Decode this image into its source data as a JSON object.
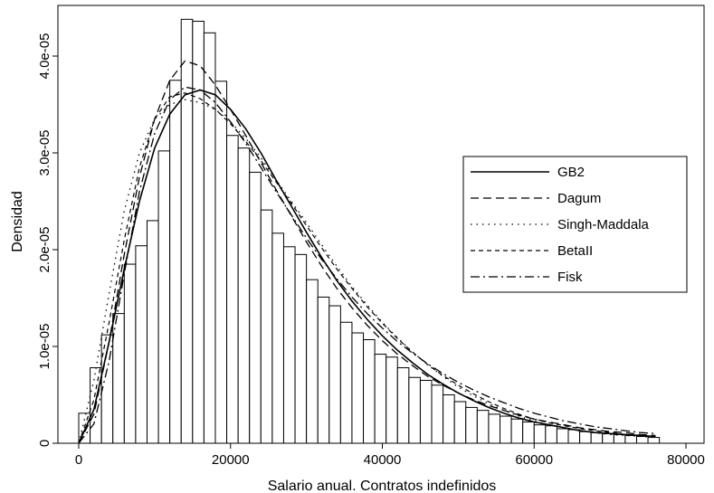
{
  "chart_data": {
    "type": "bar",
    "xlabel": "Salario anual. Contratos indefinidos",
    "ylabel": "Densidad",
    "xlim": [
      0,
      80000
    ],
    "ylim": [
      0,
      4.5e-05
    ],
    "x_ticks": [
      0,
      20000,
      40000,
      60000,
      80000
    ],
    "x_tick_labels": [
      "0",
      "20000",
      "40000",
      "60000",
      "80000"
    ],
    "y_ticks": [
      0,
      1e-05,
      2e-05,
      3e-05,
      4e-05
    ],
    "y_tick_labels": [
      "0",
      "1.0e-05",
      "2.0e-05",
      "3.0e-05",
      "4.0e-05"
    ],
    "histogram": {
      "bin_width": 1500,
      "bin_starts": [
        0,
        1500,
        3000,
        4500,
        6000,
        7500,
        9000,
        10500,
        12000,
        13500,
        15000,
        16500,
        18000,
        19500,
        21000,
        22500,
        24000,
        25500,
        27000,
        28500,
        30000,
        31500,
        33000,
        34500,
        36000,
        37500,
        39000,
        40500,
        42000,
        43500,
        45000,
        46500,
        48000,
        49500,
        51000,
        52500,
        54000,
        55500,
        57000,
        58500,
        60000,
        61500,
        63000,
        64500,
        66000,
        67500,
        69000,
        70500,
        72000,
        73500,
        75000
      ],
      "density": [
        3.1e-06,
        7.8e-06,
        1.12e-05,
        1.34e-05,
        1.85e-05,
        2.04e-05,
        2.3e-05,
        3.02e-05,
        3.75e-05,
        4.38e-05,
        4.36e-05,
        4.24e-05,
        3.74e-05,
        3.18e-05,
        3.05e-05,
        2.8e-05,
        2.41e-05,
        2.17e-05,
        2.03e-05,
        1.95e-05,
        1.69e-05,
        1.51e-05,
        1.42e-05,
        1.25e-05,
        1.14e-05,
        1.07e-05,
        9.2e-06,
        8.9e-06,
        7.8e-06,
        6.8e-06,
        6.5e-06,
        6e-06,
        5e-06,
        4.3e-06,
        3.7e-06,
        3.4e-06,
        3e-06,
        2.8e-06,
        2.5e-06,
        2.2e-06,
        1.9e-06,
        1.8e-06,
        1.5e-06,
        1.4e-06,
        1.2e-06,
        1.1e-06,
        1e-06,
        9e-07,
        8e-07,
        7e-07,
        6e-07
      ]
    },
    "series": [
      {
        "name": "GB2",
        "dash": "solid",
        "width": 1.6,
        "x": [
          0,
          2000,
          4000,
          6000,
          8000,
          10000,
          12000,
          14000,
          16000,
          18000,
          20000,
          22000,
          24000,
          26000,
          28000,
          30000,
          32000,
          34000,
          36000,
          38000,
          40000,
          42000,
          44000,
          46000,
          48000,
          50000,
          52000,
          54000,
          56000,
          58000,
          60000,
          62000,
          64000,
          66000,
          68000,
          70000,
          72000,
          74000,
          76000
        ],
        "y": [
          0,
          3.5e-06,
          1.05e-05,
          1.8e-05,
          2.5e-05,
          3.05e-05,
          3.4e-05,
          3.6e-05,
          3.65e-05,
          3.6e-05,
          3.45e-05,
          3.25e-05,
          3e-05,
          2.72e-05,
          2.45e-05,
          2.18e-05,
          1.92e-05,
          1.68e-05,
          1.47e-05,
          1.28e-05,
          1.11e-05,
          9.6e-06,
          8.3e-06,
          7.1e-06,
          6.1e-06,
          5.2e-06,
          4.4e-06,
          3.7e-06,
          3.1e-06,
          2.6e-06,
          2.2e-06,
          1.9e-06,
          1.6e-06,
          1.3e-06,
          1.1e-06,
          1e-06,
          9e-07,
          8e-07,
          7e-07
        ]
      },
      {
        "name": "Dagum",
        "dash": "9,5",
        "width": 1.3,
        "x": [
          0,
          2000,
          4000,
          6000,
          8000,
          10000,
          12000,
          14000,
          16000,
          18000,
          20000,
          22000,
          24000,
          26000,
          28000,
          30000,
          32000,
          34000,
          36000,
          38000,
          40000,
          42000,
          44000,
          46000,
          48000,
          50000,
          52000,
          54000,
          56000,
          58000,
          60000,
          62000,
          64000,
          66000,
          68000,
          70000,
          72000,
          74000,
          76000
        ],
        "y": [
          0,
          3e-06,
          1.05e-05,
          1.95e-05,
          2.75e-05,
          3.35e-05,
          3.75e-05,
          3.95e-05,
          3.9e-05,
          3.7e-05,
          3.45e-05,
          3.18e-05,
          2.9e-05,
          2.62e-05,
          2.35e-05,
          2.08e-05,
          1.83e-05,
          1.6e-05,
          1.4e-05,
          1.22e-05,
          1.06e-05,
          9.2e-06,
          8e-06,
          6.9e-06,
          6e-06,
          5.2e-06,
          4.5e-06,
          3.9e-06,
          3.4e-06,
          2.9e-06,
          2.5e-06,
          2.2e-06,
          1.9e-06,
          1.6e-06,
          1.4e-06,
          1.2e-06,
          1.1e-06,
          9e-07,
          8e-07
        ]
      },
      {
        "name": "Singh-Maddala",
        "dash": "1.5,5",
        "width": 1.3,
        "x": [
          0,
          2000,
          4000,
          6000,
          8000,
          10000,
          12000,
          14000,
          16000,
          18000,
          20000,
          22000,
          24000,
          26000,
          28000,
          30000,
          32000,
          34000,
          36000,
          38000,
          40000,
          42000,
          44000,
          46000,
          48000,
          50000,
          52000,
          54000,
          56000,
          58000,
          60000,
          62000,
          64000,
          66000,
          68000,
          70000,
          72000,
          74000,
          76000
        ],
        "y": [
          0,
          6.5e-06,
          1.55e-05,
          2.4e-05,
          3e-05,
          3.35e-05,
          3.5e-05,
          3.55e-05,
          3.52e-05,
          3.45e-05,
          3.32e-05,
          3.15e-05,
          2.95e-05,
          2.72e-05,
          2.5e-05,
          2.28e-05,
          2.05e-05,
          1.83e-05,
          1.62e-05,
          1.43e-05,
          1.25e-05,
          1.09e-05,
          9.4e-06,
          8.1e-06,
          6.9e-06,
          5.8e-06,
          4.9e-06,
          4.1e-06,
          3.4e-06,
          2.8e-06,
          2.3e-06,
          1.9e-06,
          1.6e-06,
          1.3e-06,
          1.1e-06,
          9e-07,
          8e-07,
          7e-07,
          6e-07
        ]
      },
      {
        "name": "BetaII",
        "dash": "5,4",
        "width": 1.2,
        "x": [
          0,
          2000,
          4000,
          6000,
          8000,
          10000,
          12000,
          14000,
          16000,
          18000,
          20000,
          22000,
          24000,
          26000,
          28000,
          30000,
          32000,
          34000,
          36000,
          38000,
          40000,
          42000,
          44000,
          46000,
          48000,
          50000,
          52000,
          54000,
          56000,
          58000,
          60000,
          62000,
          64000,
          66000,
          68000,
          70000,
          72000,
          74000,
          76000
        ],
        "y": [
          0,
          4.5e-06,
          1.25e-05,
          2.1e-05,
          2.85e-05,
          3.35e-05,
          3.58e-05,
          3.62e-05,
          3.56e-05,
          3.45e-05,
          3.3e-05,
          3.12e-05,
          2.92e-05,
          2.7e-05,
          2.48e-05,
          2.25e-05,
          2.02e-05,
          1.8e-05,
          1.6e-05,
          1.41e-05,
          1.24e-05,
          1.08e-05,
          9.4e-06,
          8.1e-06,
          7e-06,
          6e-06,
          5.1e-06,
          4.3e-06,
          3.6e-06,
          3e-06,
          2.5e-06,
          2.1e-06,
          1.8e-06,
          1.5e-06,
          1.3e-06,
          1.1e-06,
          9e-07,
          8e-07,
          7e-07
        ]
      },
      {
        "name": "Fisk",
        "dash": "10,4,2,4",
        "width": 1.3,
        "x": [
          0,
          2000,
          4000,
          6000,
          8000,
          10000,
          12000,
          14000,
          16000,
          18000,
          20000,
          22000,
          24000,
          26000,
          28000,
          30000,
          32000,
          34000,
          36000,
          38000,
          40000,
          42000,
          44000,
          46000,
          48000,
          50000,
          52000,
          54000,
          56000,
          58000,
          60000,
          62000,
          64000,
          66000,
          68000,
          70000,
          72000,
          74000,
          76000
        ],
        "y": [
          0,
          2e-06,
          8.5e-06,
          1.75e-05,
          2.6e-05,
          3.2e-05,
          3.55e-05,
          3.68e-05,
          3.65e-05,
          3.52e-05,
          3.32e-05,
          3.1e-05,
          2.85e-05,
          2.6e-05,
          2.36e-05,
          2.12e-05,
          1.9e-05,
          1.7e-05,
          1.51e-05,
          1.34e-05,
          1.19e-05,
          1.05e-05,
          9.3e-06,
          8.2e-06,
          7.2e-06,
          6.3e-06,
          5.5e-06,
          4.8e-06,
          4.2e-06,
          3.6e-06,
          3.1e-06,
          2.7e-06,
          2.3e-06,
          2e-06,
          1.7e-06,
          1.5e-06,
          1.3e-06,
          1.1e-06,
          1e-06
        ]
      }
    ],
    "legend_position": "right",
    "grid": false
  }
}
